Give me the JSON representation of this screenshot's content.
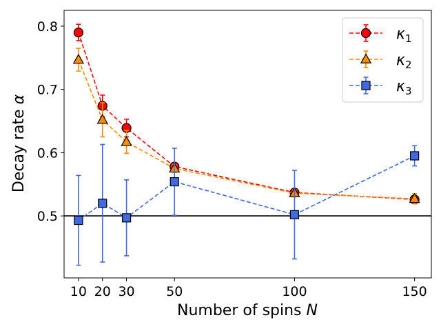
{
  "chart_data": {
    "type": "line",
    "xlabel_text": "Number of spins ",
    "xlabel_var": "N",
    "ylabel_text": "Decay rate ",
    "ylabel_var": "α",
    "xlim": [
      4,
      157
    ],
    "ylim": [
      0.402,
      0.825
    ],
    "xticks": [
      10,
      20,
      30,
      50,
      100,
      150
    ],
    "yticks": [
      0.5,
      0.6,
      0.7,
      0.8
    ],
    "ytick_labels": [
      "0.5",
      "0.6",
      "0.7",
      "0.8"
    ],
    "reference_line": 0.5,
    "x": [
      10,
      20,
      30,
      50,
      100,
      150
    ],
    "legend_location": "top-right",
    "series": [
      {
        "name": "κ",
        "subscript": "1",
        "values": [
          0.79,
          0.674,
          0.639,
          0.578,
          0.537,
          0.526
        ],
        "errors": [
          0.013,
          0.017,
          0.014,
          0.006,
          0.005,
          0.004
        ],
        "line_color": "#ff0000",
        "face_color": "#ff0000",
        "marker": "circle"
      },
      {
        "name": "κ",
        "subscript": "2",
        "values": [
          0.747,
          0.652,
          0.617,
          0.575,
          0.536,
          0.527
        ],
        "errors": [
          0.018,
          0.027,
          0.018,
          0.006,
          0.005,
          0.008
        ],
        "line_color": "#ff8c00",
        "face_color": "#ff8c00",
        "marker": "triangle"
      },
      {
        "name": "κ",
        "subscript": "3",
        "values": [
          0.493,
          0.52,
          0.497,
          0.554,
          0.502,
          0.595
        ],
        "errors": [
          0.071,
          0.093,
          0.06,
          0.053,
          0.07,
          0.016
        ],
        "line_color": "#4169e1",
        "face_color": "#4169e1",
        "marker": "square"
      }
    ]
  }
}
